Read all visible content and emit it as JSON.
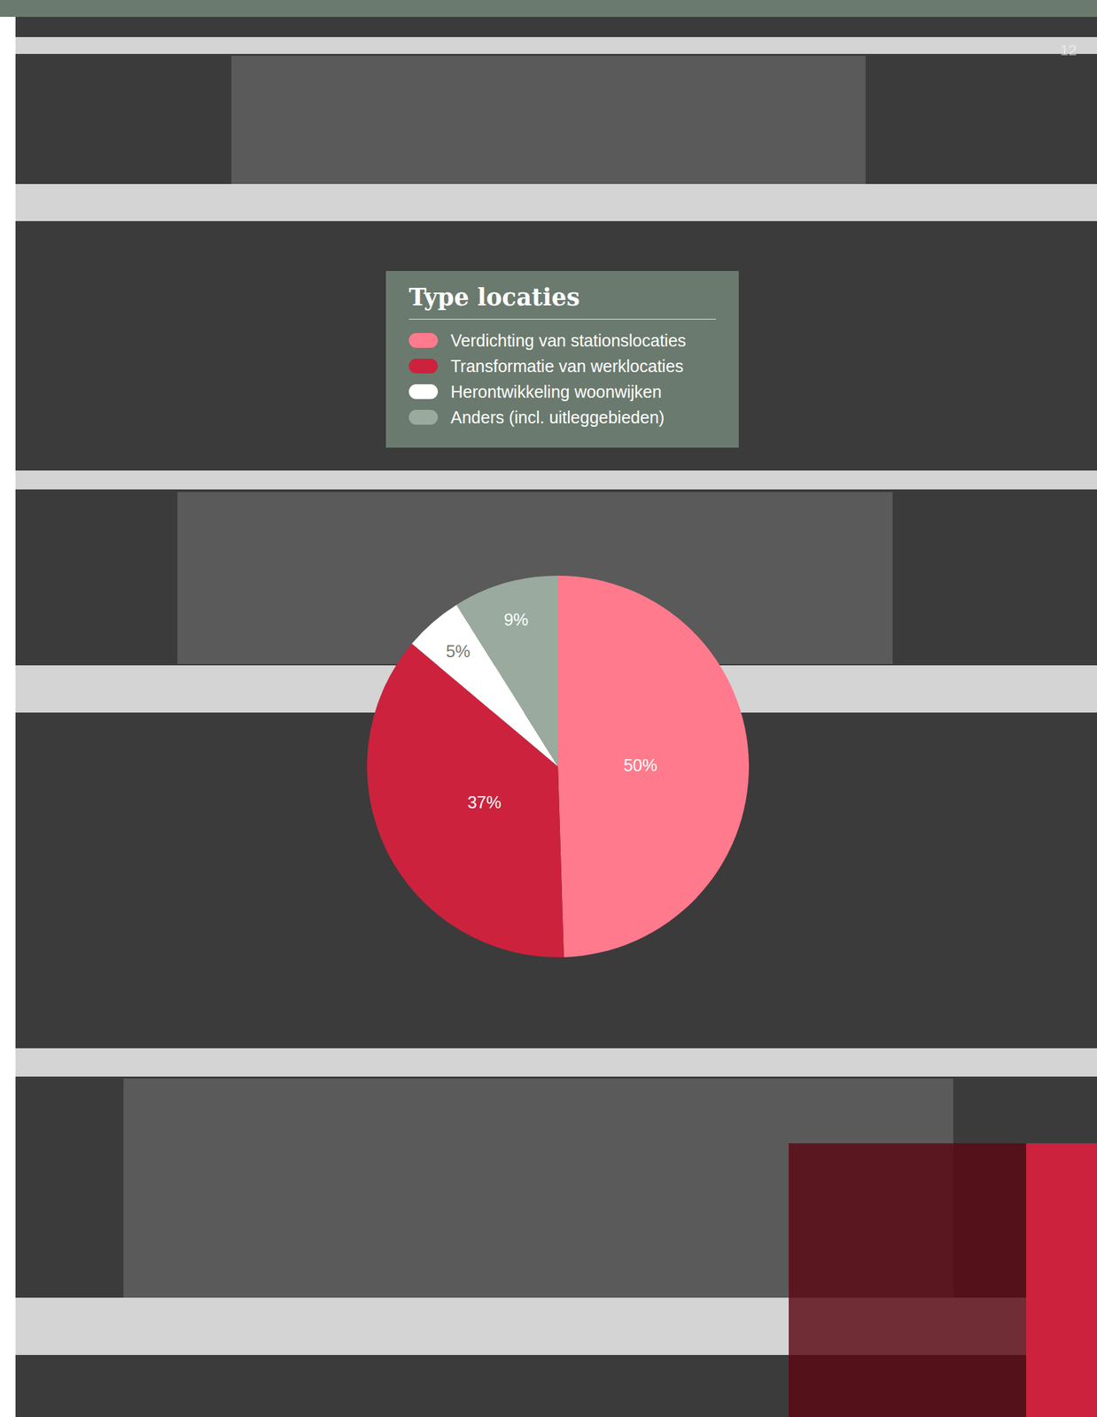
{
  "page_number": "12",
  "chart_data": {
    "type": "pie",
    "title": "Type locaties",
    "categories": [
      "Verdichting van stationslocaties",
      "Transformatie van werklocaties",
      "Herontwikkeling woonwijken",
      "Anders (incl. uitleggebieden)"
    ],
    "values": [
      50,
      37,
      5,
      9
    ],
    "value_labels": [
      "50%",
      "37%",
      "5%",
      "9%"
    ],
    "colors": [
      "#ff7a8c",
      "#cc223d",
      "#ffffff",
      "#9aaa9e"
    ],
    "data_labels": true,
    "legend": "top"
  }
}
